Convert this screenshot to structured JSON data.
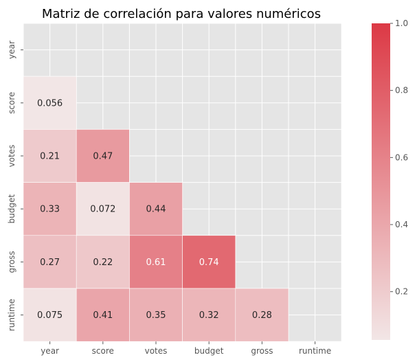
{
  "chart_data": {
    "type": "heatmap",
    "title": "Matriz de correlación para valores numéricos",
    "xlabel": "",
    "ylabel": "",
    "labels": [
      "year",
      "score",
      "votes",
      "budget",
      "gross",
      "runtime"
    ],
    "values": [
      [
        null,
        null,
        null,
        null,
        null,
        null
      ],
      [
        0.056,
        null,
        null,
        null,
        null,
        null
      ],
      [
        0.21,
        0.47,
        null,
        null,
        null,
        null
      ],
      [
        0.33,
        0.072,
        0.44,
        null,
        null,
        null
      ],
      [
        0.27,
        0.22,
        0.61,
        0.74,
        null,
        null
      ],
      [
        0.075,
        0.41,
        0.35,
        0.32,
        0.28,
        null
      ]
    ],
    "annotations": [
      [
        null,
        null,
        null,
        null,
        null,
        null
      ],
      [
        "0.056",
        null,
        null,
        null,
        null,
        null
      ],
      [
        "0.21",
        "0.47",
        null,
        null,
        null,
        null
      ],
      [
        "0.33",
        "0.072",
        "0.44",
        null,
        null,
        null
      ],
      [
        "0.27",
        "0.22",
        "0.61",
        "0.74",
        null,
        null
      ],
      [
        "0.075",
        "0.41",
        "0.35",
        "0.32",
        "0.28",
        null
      ]
    ],
    "mask": "upper-triangle-including-diagonal",
    "vmin": 0.056,
    "vmax": 1.0,
    "colorbar": {
      "ticks": [
        0.2,
        0.4,
        0.6,
        0.8,
        1.0
      ],
      "tick_labels": [
        "0.2",
        "0.4",
        "0.6",
        "0.8",
        "1.0"
      ],
      "placement": "right"
    },
    "colors": {
      "low": "#f2e6e6",
      "high": "#dc3945",
      "background": "#e5e5e5",
      "grid": "#ffffff",
      "text_dark": "#262626",
      "text_light": "#ffffff"
    },
    "grid": true
  }
}
